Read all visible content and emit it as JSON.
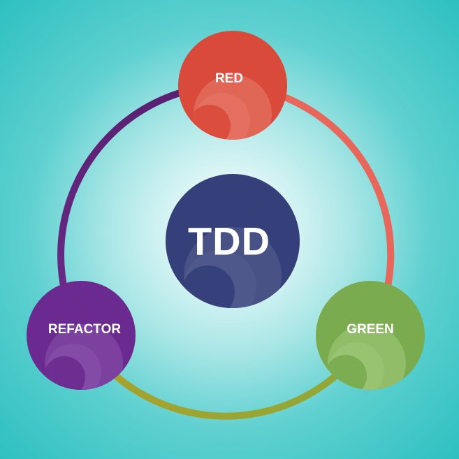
{
  "diagram": {
    "center_label": "TDD",
    "nodes": [
      {
        "id": "red",
        "label": "RED",
        "color": "#d94a3a"
      },
      {
        "id": "green",
        "label": "GREEN",
        "color": "#7aab4f"
      },
      {
        "id": "refactor",
        "label": "REFACTOR",
        "color": "#6a2a8f"
      }
    ],
    "center_color": "#35407a",
    "ring_colors": {
      "red_to_green": "#e8675a",
      "green_to_refactor": "#9aa828",
      "refactor_to_red": "#5d2478"
    }
  }
}
